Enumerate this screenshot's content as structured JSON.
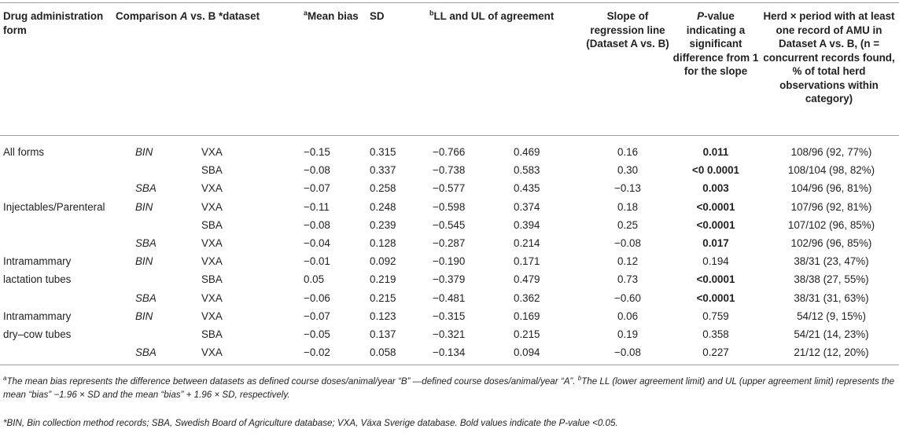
{
  "headers": {
    "form": "Drug administration form",
    "comparison_prefix": "Comparison ",
    "comparison_a": "A",
    "comparison_mid": " vs. B ",
    "comparison_suffix": "*dataset",
    "mean_bias_sup": "a",
    "mean_bias": "Mean bias",
    "sd": "SD",
    "ll_ul_sup": "b",
    "ll_ul": "LL and UL of agreement",
    "slope": "Slope of regression line (Dataset A vs. B)",
    "pvalue_p": "P",
    "pvalue": "-value indicating a significant difference from 1 for the slope",
    "herd": "Herd × period with at least one record of AMU in Dataset A vs. B, (n = concurrent records found, % of total herd observations within category)"
  },
  "rows": [
    {
      "form": "All forms",
      "a": "BIN",
      "b": "VXA",
      "mean": "−0.15",
      "sd": "0.315",
      "ll": "−0.766",
      "ul": "0.469",
      "slope": "0.16",
      "p": "0.011",
      "bold": true,
      "herd": "108/96 (92, 77%)"
    },
    {
      "form": "",
      "a": "",
      "b": "SBA",
      "mean": "−0.08",
      "sd": "0.337",
      "ll": "−0.738",
      "ul": "0.583",
      "slope": "0.30",
      "p": "<0 0.0001",
      "bold": true,
      "herd": "108/104 (98, 82%)"
    },
    {
      "form": "",
      "a": "SBA",
      "b": "VXA",
      "mean": "−0.07",
      "sd": "0.258",
      "ll": "−0.577",
      "ul": "0.435",
      "slope": "−0.13",
      "p": "0.003",
      "bold": true,
      "herd": "104/96 (96, 81%)"
    },
    {
      "form": "Injectables/Parenteral",
      "a": "BIN",
      "b": "VXA",
      "mean": "−0.11",
      "sd": "0.248",
      "ll": "−0.598",
      "ul": "0.374",
      "slope": "0.18",
      "p": "<0.0001",
      "bold": true,
      "herd": "107/96 (92, 81%)"
    },
    {
      "form": "",
      "a": "",
      "b": "SBA",
      "mean": "−0.08",
      "sd": "0.239",
      "ll": "−0.545",
      "ul": "0.394",
      "slope": "0.25",
      "p": "<0.0001",
      "bold": true,
      "herd": "107/102 (96, 85%)"
    },
    {
      "form": "",
      "a": "SBA",
      "b": "VXA",
      "mean": "−0.04",
      "sd": "0.128",
      "ll": "−0.287",
      "ul": "0.214",
      "slope": "−0.08",
      "p": "0.017",
      "bold": true,
      "herd": "102/96 (96, 85%)"
    },
    {
      "form": "Intramammary",
      "a": "BIN",
      "b": "VXA",
      "mean": "−0.01",
      "sd": "0.092",
      "ll": "−0.190",
      "ul": "0.171",
      "slope": "0.12",
      "p": "0.194",
      "bold": false,
      "herd": "38/31 (23, 47%)"
    },
    {
      "form": "lactation tubes",
      "a": "",
      "b": "SBA",
      "mean": "0.05",
      "sd": "0.219",
      "ll": "−0.379",
      "ul": "0.479",
      "slope": "0.73",
      "p": "<0.0001",
      "bold": true,
      "herd": "38/38 (27, 55%)"
    },
    {
      "form": "",
      "a": "SBA",
      "b": "VXA",
      "mean": "−0.06",
      "sd": "0.215",
      "ll": "−0.481",
      "ul": "0.362",
      "slope": "−0.60",
      "p": "<0.0001",
      "bold": true,
      "herd": "38/31 (31, 63%)"
    },
    {
      "form": "Intramammary",
      "a": "BIN",
      "b": "VXA",
      "mean": "−0.07",
      "sd": "0.123",
      "ll": "−0.315",
      "ul": "0.169",
      "slope": "0.06",
      "p": "0.759",
      "bold": false,
      "herd": "54/12 (9, 15%)"
    },
    {
      "form": "dry–cow tubes",
      "a": "",
      "b": "SBA",
      "mean": "−0.05",
      "sd": "0.137",
      "ll": "−0.321",
      "ul": "0.215",
      "slope": "0.19",
      "p": "0.358",
      "bold": false,
      "herd": "54/21 (14, 23%)"
    },
    {
      "form": "",
      "a": "SBA",
      "b": "VXA",
      "mean": "−0.02",
      "sd": "0.058",
      "ll": "−0.134",
      "ul": "0.094",
      "slope": "−0.08",
      "p": "0.227",
      "bold": false,
      "herd": "21/12 (12, 20%)"
    }
  ],
  "footnotes": {
    "a_sup": "a",
    "a_text": "The mean bias represents the difference between datasets as defined course doses/animal/year “B” —defined course doses/animal/year “A”.",
    "b_sup": "b",
    "b_text": "The LL (lower agreement limit) and UL (upper agreement limit) represents the mean “bias” −1.96 × SD and the mean “bias” + 1.96 × SD, respectively.",
    "star_text": "*BIN, Bin collection method records; SBA, Swedish Board of Agriculture database; VXA, Växa Sverige database. Bold values indicate the P-value <0.05."
  }
}
